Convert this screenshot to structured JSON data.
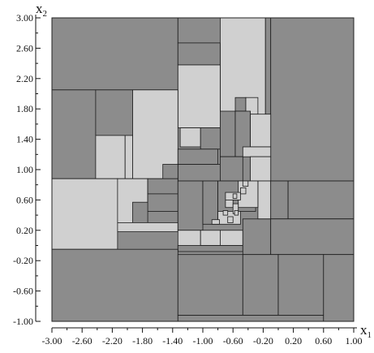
{
  "chart_data": {
    "type": "rectangle-partition",
    "x_axis": {
      "label": "x",
      "subscript": "1",
      "range": [
        -3.0,
        1.0
      ],
      "ticks": [
        "-3.00",
        "-2.60",
        "-2.20",
        "-1.80",
        "-1.40",
        "-1.00",
        "-0.60",
        "-0.20",
        "0.20",
        "0.60",
        "1.00"
      ]
    },
    "y_axis": {
      "label": "x",
      "subscript": "2",
      "range": [
        -1.0,
        3.0
      ],
      "ticks": [
        "3.00",
        "2.60",
        "2.20",
        "1.80",
        "1.40",
        "1.00",
        "0.60",
        "0.20",
        "-0.20",
        "-0.60",
        "-1.00"
      ]
    },
    "colors": {
      "dark": "#8c8c8c",
      "light": "#d0d0d0",
      "edge": "#1a1a1a"
    },
    "rects": [
      {
        "x0": -3.0,
        "x1": -1.33,
        "y0": 2.05,
        "y1": 3.0,
        "shade": "dark"
      },
      {
        "x0": -1.33,
        "x1": -0.77,
        "y0": 2.67,
        "y1": 3.0,
        "shade": "dark"
      },
      {
        "x0": -0.77,
        "x1": -0.17,
        "y0": 1.55,
        "y1": 3.0,
        "shade": "light"
      },
      {
        "x0": -0.17,
        "x1": -0.1,
        "y0": 1.55,
        "y1": 3.0,
        "shade": "dark"
      },
      {
        "x0": -0.1,
        "x1": 1.0,
        "y0": 0.85,
        "y1": 3.0,
        "shade": "dark"
      },
      {
        "x0": -1.33,
        "x1": -0.77,
        "y0": 2.38,
        "y1": 2.67,
        "shade": "dark"
      },
      {
        "x0": -1.33,
        "x1": -0.77,
        "y0": 1.55,
        "y1": 2.38,
        "shade": "light"
      },
      {
        "x0": -3.0,
        "x1": -2.42,
        "y0": 0.88,
        "y1": 2.05,
        "shade": "dark"
      },
      {
        "x0": -2.42,
        "x1": -1.93,
        "y0": 1.45,
        "y1": 2.05,
        "shade": "dark"
      },
      {
        "x0": -1.93,
        "x1": -1.33,
        "y0": 0.88,
        "y1": 2.05,
        "shade": "light"
      },
      {
        "x0": -2.42,
        "x1": -2.03,
        "y0": 0.88,
        "y1": 1.45,
        "shade": "light"
      },
      {
        "x0": -2.03,
        "x1": -1.93,
        "y0": 0.88,
        "y1": 1.45,
        "shade": "light"
      },
      {
        "x0": -0.57,
        "x1": -0.43,
        "y0": 1.77,
        "y1": 1.95,
        "shade": "dark"
      },
      {
        "x0": -0.43,
        "x1": -0.27,
        "y0": 1.73,
        "y1": 1.95,
        "shade": "light"
      },
      {
        "x0": -1.3,
        "x1": -1.03,
        "y0": 1.3,
        "y1": 1.55,
        "shade": "light"
      },
      {
        "x0": -1.03,
        "x1": -0.77,
        "y0": 1.27,
        "y1": 1.55,
        "shade": "dark"
      },
      {
        "x0": -0.77,
        "x1": -0.57,
        "y0": 1.17,
        "y1": 1.77,
        "shade": "dark"
      },
      {
        "x0": -0.57,
        "x1": -0.37,
        "y0": 1.17,
        "y1": 1.77,
        "shade": "dark"
      },
      {
        "x0": -0.37,
        "x1": -0.1,
        "y0": 1.3,
        "y1": 1.73,
        "shade": "light"
      },
      {
        "x0": -1.33,
        "x1": -0.8,
        "y0": 1.07,
        "y1": 1.27,
        "shade": "dark"
      },
      {
        "x0": -1.33,
        "x1": -0.77,
        "y0": 0.85,
        "y1": 1.07,
        "shade": "dark"
      },
      {
        "x0": -0.77,
        "x1": -0.47,
        "y0": 0.85,
        "y1": 1.17,
        "shade": "dark"
      },
      {
        "x0": -0.47,
        "x1": -0.1,
        "y0": 1.17,
        "y1": 1.3,
        "shade": "light"
      },
      {
        "x0": -0.37,
        "x1": -0.1,
        "y0": 0.85,
        "y1": 1.17,
        "shade": "light"
      },
      {
        "x0": -1.53,
        "x1": -1.33,
        "y0": 0.88,
        "y1": 1.07,
        "shade": "dark"
      },
      {
        "x0": -3.0,
        "x1": -2.13,
        "y0": -0.05,
        "y1": 0.88,
        "shade": "light"
      },
      {
        "x0": -2.13,
        "x1": -1.73,
        "y0": 0.3,
        "y1": 0.88,
        "shade": "light"
      },
      {
        "x0": -1.73,
        "x1": -1.33,
        "y0": 0.68,
        "y1": 0.88,
        "shade": "dark"
      },
      {
        "x0": -1.73,
        "x1": -1.33,
        "y0": 0.45,
        "y1": 0.68,
        "shade": "dark"
      },
      {
        "x0": -1.73,
        "x1": -1.33,
        "y0": 0.3,
        "y1": 0.45,
        "shade": "dark"
      },
      {
        "x0": -1.93,
        "x1": -1.73,
        "y0": 0.28,
        "y1": 0.57,
        "shade": "dark"
      },
      {
        "x0": -2.13,
        "x1": -1.33,
        "y0": 0.18,
        "y1": 0.3,
        "shade": "light"
      },
      {
        "x0": -1.33,
        "x1": -1.0,
        "y0": 0.2,
        "y1": 0.85,
        "shade": "dark"
      },
      {
        "x0": -1.0,
        "x1": -0.8,
        "y0": 0.28,
        "y1": 0.85,
        "shade": "dark"
      },
      {
        "x0": -1.33,
        "x1": -1.03,
        "y0": -0.05,
        "y1": 0.2,
        "shade": "light"
      },
      {
        "x0": -1.03,
        "x1": -0.77,
        "y0": 0.0,
        "y1": 0.2,
        "shade": "light"
      },
      {
        "x0": -0.77,
        "x1": -0.47,
        "y0": 0.0,
        "y1": 0.2,
        "shade": "light"
      },
      {
        "x0": -1.33,
        "x1": -0.47,
        "y0": -0.08,
        "y1": 0.0,
        "shade": "dark"
      },
      {
        "x0": -0.47,
        "x1": -0.1,
        "y0": -0.12,
        "y1": 0.35,
        "shade": "dark"
      },
      {
        "x0": -0.27,
        "x1": -0.1,
        "y0": 0.35,
        "y1": 0.85,
        "shade": "light"
      },
      {
        "x0": -0.1,
        "x1": 0.13,
        "y0": 0.35,
        "y1": 0.85,
        "shade": "dark"
      },
      {
        "x0": 0.13,
        "x1": 1.0,
        "y0": 0.35,
        "y1": 0.85,
        "shade": "dark"
      },
      {
        "x0": -0.8,
        "x1": -0.3,
        "y0": 0.45,
        "y1": 0.85,
        "shade": "dark"
      },
      {
        "x0": -0.8,
        "x1": -0.5,
        "y0": 0.28,
        "y1": 0.45,
        "shade": "light"
      },
      {
        "x0": -0.53,
        "x1": -0.27,
        "y0": 0.5,
        "y1": 0.85,
        "shade": "light"
      },
      {
        "x0": -0.1,
        "x1": 1.0,
        "y0": -0.12,
        "y1": 0.35,
        "shade": "dark"
      },
      {
        "x0": -3.0,
        "x1": -1.33,
        "y0": -1.0,
        "y1": -0.05,
        "shade": "dark"
      },
      {
        "x0": -1.33,
        "x1": -0.47,
        "y0": -0.92,
        "y1": -0.12,
        "shade": "dark"
      },
      {
        "x0": -0.47,
        "x1": 0.0,
        "y0": -0.92,
        "y1": -0.12,
        "shade": "dark"
      },
      {
        "x0": 0.0,
        "x1": 0.6,
        "y0": -0.92,
        "y1": -0.12,
        "shade": "dark"
      },
      {
        "x0": -1.33,
        "x1": 0.6,
        "y0": -1.0,
        "y1": -0.92,
        "shade": "dark"
      },
      {
        "x0": 0.6,
        "x1": 1.0,
        "y0": -1.0,
        "y1": -0.12,
        "shade": "dark"
      },
      {
        "x0": -0.7,
        "x1": -0.5,
        "y0": 0.6,
        "y1": 0.7,
        "shade": "light"
      },
      {
        "x0": -0.7,
        "x1": -0.6,
        "y0": 0.5,
        "y1": 0.6,
        "shade": "light"
      },
      {
        "x0": -0.6,
        "x1": -0.53,
        "y0": 0.42,
        "y1": 0.55,
        "shade": "light"
      },
      {
        "x0": -0.88,
        "x1": -0.78,
        "y0": 0.28,
        "y1": 0.34,
        "shade": "light"
      },
      {
        "x0": -0.67,
        "x1": -0.6,
        "y0": 0.3,
        "y1": 0.38,
        "shade": "light"
      },
      {
        "x0": -0.5,
        "x1": -0.43,
        "y0": 0.68,
        "y1": 0.76,
        "shade": "light"
      },
      {
        "x0": -0.6,
        "x1": -0.55,
        "y0": 0.62,
        "y1": 0.68,
        "shade": "light"
      },
      {
        "x0": -0.58,
        "x1": -0.53,
        "y0": 0.4,
        "y1": 0.46,
        "shade": "light"
      },
      {
        "x0": -0.73,
        "x1": -0.67,
        "y0": 0.4,
        "y1": 0.46,
        "shade": "light"
      },
      {
        "x0": -0.47,
        "x1": -0.4,
        "y0": 0.78,
        "y1": 0.85,
        "shade": "light"
      }
    ]
  }
}
